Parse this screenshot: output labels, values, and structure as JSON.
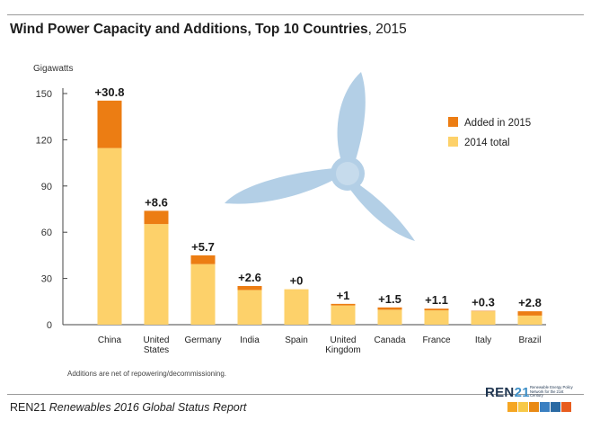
{
  "title": {
    "bold": "Wind Power Capacity and Additions, Top 10 Countries",
    "light": ", 2015"
  },
  "note": "Additions are net of repowering/decommissioning.",
  "source": {
    "org": "REN21",
    "report": "Renewables 2016 Global Status Report"
  },
  "logo": {
    "text_a": "REN",
    "text_b": "21",
    "tagline": "Renewable Energy Policy Network for the 21st Century",
    "icon_colors": [
      "#f5a623",
      "#f7c948",
      "#e98a15",
      "#3a7fc1",
      "#2b6aa3",
      "#e85d1f"
    ]
  },
  "chart_data": {
    "type": "bar",
    "stacked": true,
    "ylabel": "Gigawatts",
    "ylim": [
      0,
      150
    ],
    "yticks": [
      0,
      30,
      60,
      90,
      120,
      150
    ],
    "grid": false,
    "legend_position": "top-right",
    "categories": [
      "China",
      "United States",
      "Germany",
      "India",
      "Spain",
      "United Kingdom",
      "Canada",
      "France",
      "Italy",
      "Brazil"
    ],
    "category_lines": [
      [
        "China"
      ],
      [
        "United",
        "States"
      ],
      [
        "Germany"
      ],
      [
        "India"
      ],
      [
        "Spain"
      ],
      [
        "United",
        "Kingdom"
      ],
      [
        "Canada"
      ],
      [
        "France"
      ],
      [
        "Italy"
      ],
      [
        "Brazil"
      ]
    ],
    "series": [
      {
        "name": "2014 total",
        "color": "#fdd16a",
        "values": [
          114.6,
          65.3,
          39.3,
          22.5,
          23.0,
          12.5,
          9.7,
          9.3,
          8.7,
          5.9
        ]
      },
      {
        "name": "Added in 2015",
        "color": "#ec7d13",
        "values": [
          30.8,
          8.6,
          5.7,
          2.6,
          0,
          1,
          1.5,
          1.1,
          0.3,
          2.8
        ]
      }
    ],
    "data_labels": [
      "+30.8",
      "+8.6",
      "+5.7",
      "+2.6",
      "+0",
      "+1",
      "+1.5",
      "+1.1",
      "+0.3",
      "+2.8"
    ],
    "legend_order": [
      "Added in 2015",
      "2014 total"
    ],
    "watermark_color": "#b3cfe6"
  }
}
